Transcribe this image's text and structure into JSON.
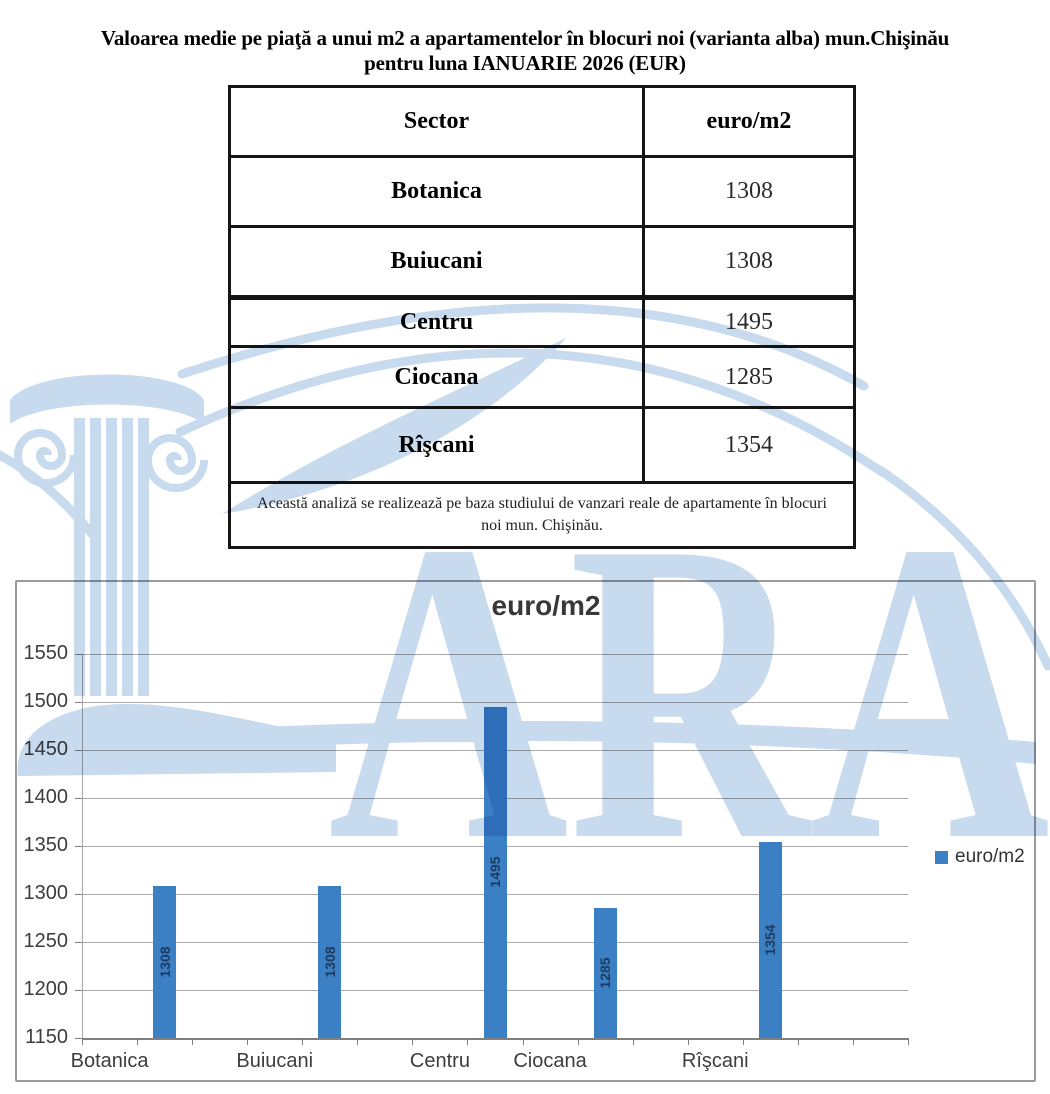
{
  "title": {
    "line1": "Valoarea medie pe piaţă a unui m2 a apartamentelor în blocuri noi (varianta alba) mun.Chişinău",
    "line2": "pentru luna IANUARIE 2026 (EUR)"
  },
  "table": {
    "columns": [
      "Sector",
      "euro/m2"
    ],
    "rows": [
      {
        "sector": "Botanica",
        "value": "1308"
      },
      {
        "sector": "Buiucani",
        "value": "1308"
      },
      {
        "sector": "Centru",
        "value": "1495"
      },
      {
        "sector": "Ciocana",
        "value": "1285"
      },
      {
        "sector": "Rîşcani",
        "value": "1354"
      }
    ],
    "note": "Această analiză se realizează pe baza studiului de vanzari reale de apartamente în blocuri noi mun. Chişinău."
  },
  "chart_data": {
    "type": "bar",
    "title": "euro/m2",
    "categories": [
      "Botanica",
      "Buiucani",
      "Centru",
      "Ciocana",
      "Rîşcani"
    ],
    "values": [
      1308,
      1308,
      1495,
      1285,
      1354
    ],
    "series": [
      {
        "name": "euro/m2",
        "values": [
          1308,
          1308,
          1495,
          1285,
          1354
        ]
      }
    ],
    "legend": [
      "euro/m2"
    ],
    "legend_position": "right",
    "ylim": [
      1150,
      1550
    ],
    "yticks": [
      1150,
      1200,
      1250,
      1300,
      1350,
      1400,
      1450,
      1500,
      1550
    ],
    "grid": true,
    "xlabel": "",
    "ylabel": "",
    "bar_color": "#3b80c4",
    "bar_label_color": "#1d3a5f",
    "gridline_color": "#a9a9a9"
  },
  "watermark": {
    "text": "LARA",
    "color": "#c7daee"
  }
}
